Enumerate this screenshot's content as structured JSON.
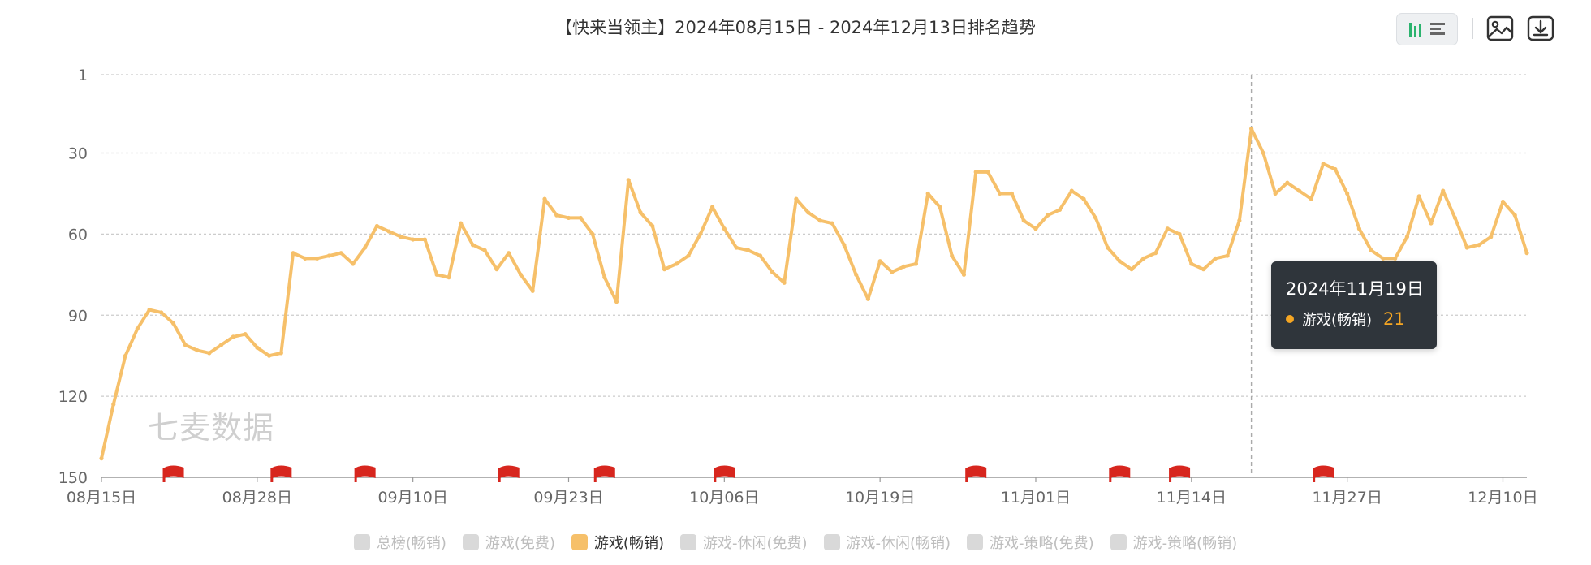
{
  "title": "【快来当领主】2024年08月15日 - 2024年12月13日排名趋势",
  "toolbar": {
    "chart_toggle_icons": [
      "bar-chart-icon",
      "list-icon"
    ],
    "image_icon": "image-icon",
    "download_icon": "download-icon"
  },
  "watermark": "七麦数据",
  "tooltip": {
    "date": "2024年11月19日",
    "series": "游戏(畅销)",
    "value": "21",
    "color": "#f5a623"
  },
  "legend": [
    {
      "label": "总榜(畅销)",
      "active": false
    },
    {
      "label": "游戏(免费)",
      "active": false
    },
    {
      "label": "游戏(畅销)",
      "active": true
    },
    {
      "label": "游戏-休闲(免费)",
      "active": false
    },
    {
      "label": "游戏-休闲(畅销)",
      "active": false
    },
    {
      "label": "游戏-策略(免费)",
      "active": false
    },
    {
      "label": "游戏-策略(畅销)",
      "active": false
    }
  ],
  "chart_data": {
    "type": "line",
    "y_inverted": true,
    "ylim": [
      1,
      150
    ],
    "yticks": [
      "1",
      "30",
      "60",
      "90",
      "120",
      "150"
    ],
    "grid": true,
    "x_ticks": [
      "08月15日",
      "08月28日",
      "09月10日",
      "09月23日",
      "10月06日",
      "10月19日",
      "11月01日",
      "11月14日",
      "11月27日",
      "12月10日"
    ],
    "x_tick_day_index": [
      0,
      13,
      26,
      39,
      52,
      65,
      78,
      91,
      104,
      117
    ],
    "series": [
      {
        "name": "游戏(畅销)",
        "color": "#f6c06a",
        "values": [
          143,
          123,
          105,
          95,
          88,
          89,
          93,
          101,
          103,
          104,
          101,
          98,
          97,
          102,
          105,
          104,
          67,
          69,
          69,
          68,
          67,
          71,
          65,
          57,
          59,
          61,
          62,
          62,
          75,
          76,
          56,
          64,
          66,
          73,
          67,
          75,
          81,
          47,
          53,
          54,
          54,
          60,
          76,
          85,
          40,
          52,
          57,
          73,
          71,
          68,
          60,
          50,
          58,
          65,
          66,
          68,
          74,
          78,
          47,
          52,
          55,
          56,
          64,
          75,
          84,
          70,
          74,
          72,
          71,
          45,
          50,
          68,
          75,
          37,
          37,
          45,
          45,
          55,
          58,
          53,
          51,
          44,
          47,
          54,
          65,
          70,
          73,
          69,
          67,
          58,
          60,
          71,
          73,
          69,
          68,
          55,
          21,
          30,
          45,
          41,
          44,
          47,
          34,
          36,
          45,
          58,
          66,
          69,
          69,
          61,
          46,
          56,
          44,
          54,
          65,
          64,
          61,
          48,
          53,
          67
        ]
      }
    ],
    "flag_day_index": [
      6,
      15,
      22,
      34,
      42,
      52,
      73,
      85,
      90,
      102
    ],
    "flag_color": "#d7261e",
    "hover_day_index": 96
  }
}
